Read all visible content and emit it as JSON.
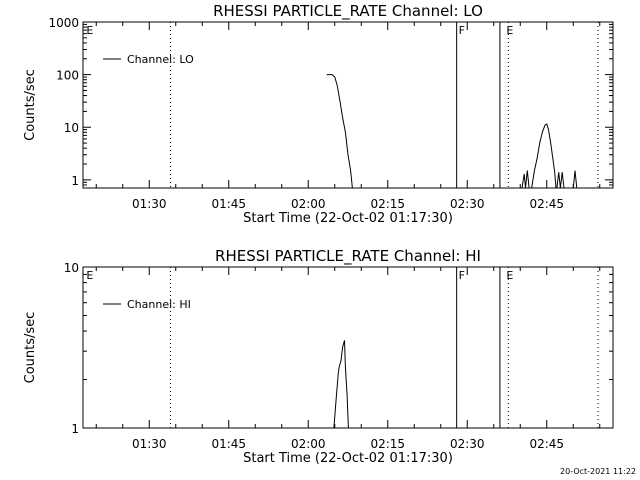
{
  "timestamp": "20-Oct-2021 11:22",
  "chart_data": [
    {
      "type": "line",
      "title": "RHESSI PARTICLE_RATE Channel: LO",
      "xlabel": "Start Time (22-Oct-02 01:17:30)",
      "ylabel": "Counts/sec",
      "yscale": "log",
      "ylim": [
        0.7,
        1000
      ],
      "xlim": [
        "01:17:30",
        "02:57:30"
      ],
      "x_ticks": [
        "01:30",
        "01:45",
        "02:00",
        "02:15",
        "02:30",
        "02:45"
      ],
      "y_ticks": [
        "1",
        "10",
        "100",
        "1000"
      ],
      "legend": {
        "label": "Channel: LO",
        "placement": "top-left"
      },
      "grid": false,
      "annotations": [
        {
          "text": "E",
          "time": "01:17:45"
        },
        {
          "text": "F",
          "time": "02:28:00"
        },
        {
          "text": "E",
          "time": "02:37:00"
        }
      ],
      "markers": [
        {
          "time": "01:34:00",
          "style": "dotted"
        },
        {
          "time": "02:28:00",
          "style": "solid"
        },
        {
          "time": "02:36:10",
          "style": "solid"
        },
        {
          "time": "02:37:45",
          "style": "dotted"
        },
        {
          "time": "02:54:40",
          "style": "dotted"
        }
      ],
      "series": [
        {
          "name": "Channel: LO",
          "segments": [
            [
              [
                "02:03:30",
                100
              ],
              [
                "02:04:30",
                100
              ],
              [
                "02:05:00",
                90
              ],
              [
                "02:05:30",
                60
              ],
              [
                "02:06:00",
                30
              ],
              [
                "02:06:30",
                15
              ],
              [
                "02:07:00",
                8
              ],
              [
                "02:07:30",
                3
              ],
              [
                "02:08:00",
                1.5
              ],
              [
                "02:08:20",
                0.7
              ]
            ],
            [
              [
                "02:40:20",
                0.7
              ],
              [
                "02:40:45",
                1.3
              ],
              [
                "02:41:00",
                0.7
              ],
              [
                "02:41:20",
                1.5
              ],
              [
                "02:41:40",
                0.7
              ]
            ],
            [
              [
                "02:42:10",
                0.7
              ],
              [
                "02:42:40",
                1.5
              ],
              [
                "02:43:10",
                2.5
              ],
              [
                "02:43:40",
                5
              ],
              [
                "02:44:10",
                8
              ],
              [
                "02:44:40",
                11
              ],
              [
                "02:45:00",
                11.5
              ],
              [
                "02:45:20",
                9
              ],
              [
                "02:45:45",
                5
              ],
              [
                "02:46:10",
                2.5
              ],
              [
                "02:46:30",
                1.4
              ],
              [
                "02:46:45",
                0.7
              ]
            ],
            [
              [
                "02:46:55",
                0.7
              ],
              [
                "02:47:15",
                1.4
              ],
              [
                "02:47:35",
                0.7
              ],
              [
                "02:47:55",
                1.4
              ],
              [
                "02:48:15",
                0.7
              ]
            ],
            [
              [
                "02:50:00",
                0.7
              ],
              [
                "02:50:20",
                1.5
              ],
              [
                "02:50:40",
                0.7
              ]
            ]
          ]
        }
      ]
    },
    {
      "type": "line",
      "title": "RHESSI PARTICLE_RATE Channel: HI",
      "xlabel": "Start Time (22-Oct-02 01:17:30)",
      "ylabel": "Counts/sec",
      "yscale": "log",
      "ylim": [
        1,
        10
      ],
      "xlim": [
        "01:17:30",
        "02:57:30"
      ],
      "x_ticks": [
        "01:30",
        "01:45",
        "02:00",
        "02:15",
        "02:30",
        "02:45"
      ],
      "y_ticks": [
        "1",
        "10"
      ],
      "legend": {
        "label": "Channel: HI",
        "placement": "top-left"
      },
      "grid": false,
      "annotations": [
        {
          "text": "E",
          "time": "01:17:45"
        },
        {
          "text": "F",
          "time": "02:28:00"
        },
        {
          "text": "E",
          "time": "02:37:00"
        }
      ],
      "markers": [
        {
          "time": "01:34:00",
          "style": "dotted"
        },
        {
          "time": "02:28:00",
          "style": "solid"
        },
        {
          "time": "02:36:10",
          "style": "solid"
        },
        {
          "time": "02:37:45",
          "style": "dotted"
        },
        {
          "time": "02:54:40",
          "style": "dotted"
        }
      ],
      "series": [
        {
          "name": "Channel: HI",
          "segments": [
            [
              [
                "02:04:50",
                1
              ],
              [
                "02:05:15",
                1.5
              ],
              [
                "02:05:40",
                2.2
              ],
              [
                "02:05:50",
                2.4
              ],
              [
                "02:06:10",
                2.6
              ],
              [
                "02:06:30",
                3.2
              ],
              [
                "02:06:50",
                3.5
              ],
              [
                "02:07:00",
                2.4
              ],
              [
                "02:07:20",
                1.6
              ],
              [
                "02:07:35",
                1
              ]
            ]
          ]
        }
      ]
    }
  ]
}
